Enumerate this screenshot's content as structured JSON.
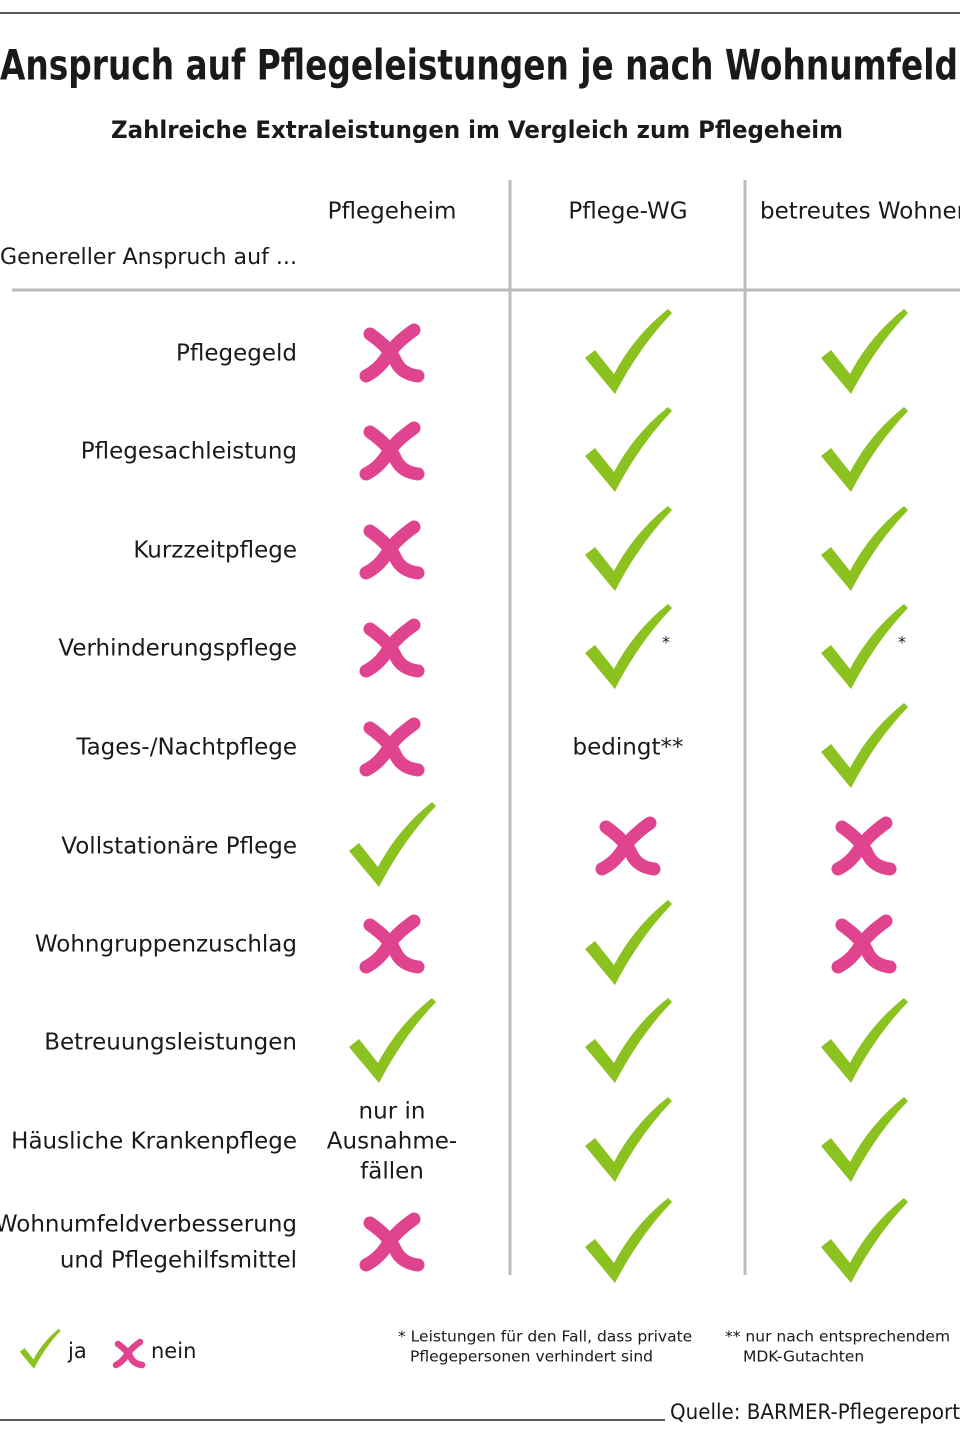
{
  "header": {
    "title": "Anspruch auf Pflegeleistungen je nach Wohnumfeld",
    "subtitle": "Zahlreiche Extraleistungen im Vergleich zum Pflegeheim"
  },
  "table": {
    "corner": "Genereller Anspruch auf ...",
    "columns": [
      "Pflegeheim",
      "Pflege-WG",
      "betreutes Wohnen"
    ],
    "rows": [
      {
        "label": [
          "Pflegegeld"
        ],
        "cells": [
          "nein",
          "ja",
          "ja"
        ]
      },
      {
        "label": [
          "Pflegesachleistung"
        ],
        "cells": [
          "nein",
          "ja",
          "ja"
        ]
      },
      {
        "label": [
          "Kurzzeitpflege"
        ],
        "cells": [
          "nein",
          "ja",
          "ja"
        ]
      },
      {
        "label": [
          "Verhinderungspflege"
        ],
        "cells": [
          "nein",
          {
            "value": "ja",
            "note": "*"
          },
          {
            "value": "ja",
            "note": "*"
          }
        ]
      },
      {
        "label": [
          "Tages-/Nachtpflege"
        ],
        "cells": [
          "nein",
          {
            "text": [
              "bedingt**"
            ]
          },
          "ja"
        ]
      },
      {
        "label": [
          "Vollstationäre Pflege"
        ],
        "cells": [
          "ja",
          "nein",
          "nein"
        ]
      },
      {
        "label": [
          "Wohngruppenzuschlag"
        ],
        "cells": [
          "nein",
          "ja",
          "nein"
        ]
      },
      {
        "label": [
          "Betreuungsleistungen"
        ],
        "cells": [
          "ja",
          "ja",
          "ja"
        ]
      },
      {
        "label": [
          "Häusliche Krankenpflege"
        ],
        "cells": [
          {
            "text": [
              "nur in",
              "Ausnahme-",
              "fällen"
            ]
          },
          "ja",
          "ja"
        ]
      },
      {
        "label": [
          "Wohnumfeldverbesserung",
          "und Pflegehilfsmittel"
        ],
        "cells": [
          "nein",
          "ja",
          "ja"
        ]
      }
    ]
  },
  "legend": [
    {
      "label": "ja",
      "color": "#8cc21f"
    },
    {
      "label": "nein",
      "color": "#e0448f"
    }
  ],
  "footnotes": [
    [
      "* Leistungen für den Fall, dass private",
      "Pflegepersonen verhindert sind"
    ],
    [
      "** nur nach entsprechendem",
      "MDK-Gutachten"
    ]
  ],
  "source": "Quelle: BARMER-Pflegereport"
}
